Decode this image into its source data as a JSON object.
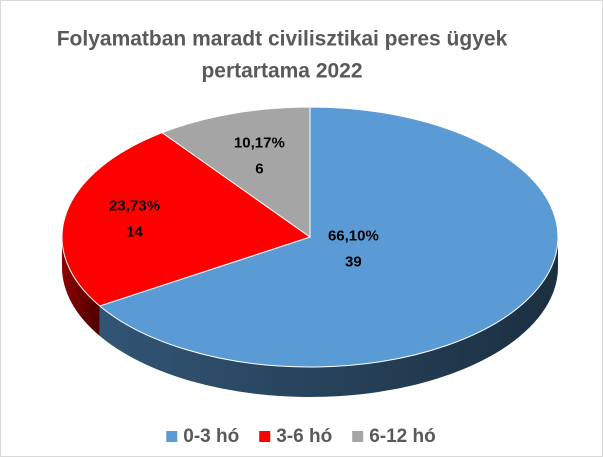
{
  "chart_data": {
    "type": "pie",
    "title": "Folyamatban maradt civilisztikai peres ügyek",
    "subtitle": "pertartama 2022",
    "categories": [
      "0-3 hó",
      "3-6 hó",
      "6-12 hó"
    ],
    "values": [
      39,
      14,
      6
    ],
    "percentages": [
      66.1,
      23.73,
      10.17
    ],
    "percentage_labels": [
      "66,10%",
      "23,73%",
      "10,17%"
    ],
    "colors": [
      "#5b9bd5",
      "#ff0000",
      "#a5a5a5"
    ],
    "legend": "bottom"
  }
}
